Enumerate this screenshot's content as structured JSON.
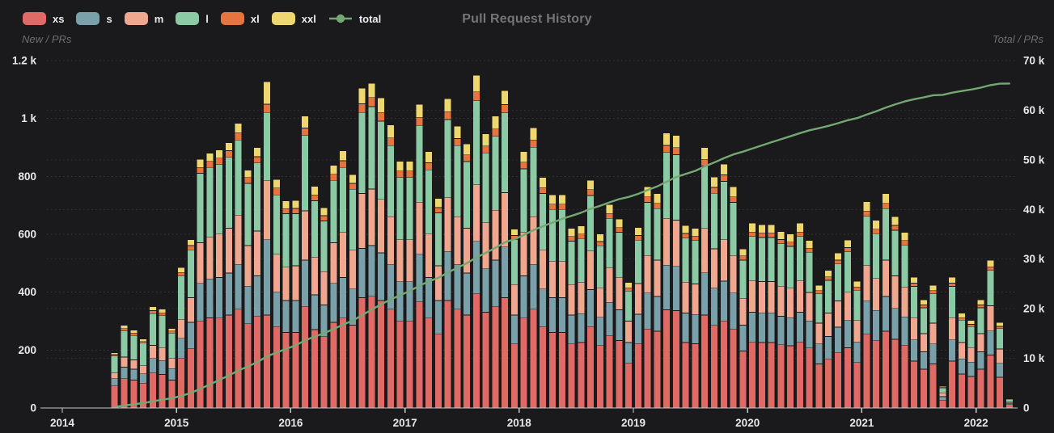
{
  "header": {
    "title": "Pull Request History"
  },
  "legend": [
    {
      "label": "xs",
      "color": "#df6a66",
      "type": "box"
    },
    {
      "label": "s",
      "color": "#7aa1a9",
      "type": "box"
    },
    {
      "label": "m",
      "color": "#f0a78f",
      "type": "box"
    },
    {
      "label": "l",
      "color": "#8cc9a5",
      "type": "box"
    },
    {
      "label": "xl",
      "color": "#e5743e",
      "type": "box"
    },
    {
      "label": "xxl",
      "color": "#eed76f",
      "type": "box"
    },
    {
      "label": "total",
      "color": "#73a873",
      "type": "line"
    }
  ],
  "axes": {
    "left": {
      "label": "New / PRs",
      "ticks": [
        "0",
        "200",
        "400",
        "600",
        "800",
        "1 k",
        "1.2 k"
      ],
      "tick_values": [
        0,
        200,
        400,
        600,
        800,
        1000,
        1200
      ],
      "max": 1200
    },
    "right": {
      "label": "Total / PRs",
      "ticks": [
        "0",
        "10 k",
        "20 k",
        "30 k",
        "40 k",
        "50 k",
        "60 k",
        "70 k"
      ],
      "tick_values": [
        0,
        10000,
        20000,
        30000,
        40000,
        50000,
        60000,
        70000
      ],
      "max": 70000
    },
    "x": {
      "ticks": [
        "2014",
        "2015",
        "2016",
        "2017",
        "2018",
        "2019",
        "2020",
        "2021",
        "2022"
      ]
    }
  },
  "chart_data": {
    "type": "bar",
    "stacked": true,
    "title": "Pull Request History",
    "grid": "dashed",
    "legend_position": "top-left",
    "left_axis_range": [
      0,
      1200
    ],
    "right_axis_range": [
      0,
      70000
    ],
    "categories": [
      "2014-06",
      "2014-07",
      "2014-08",
      "2014-09",
      "2014-10",
      "2014-11",
      "2014-12",
      "2015-01",
      "2015-02",
      "2015-03",
      "2015-04",
      "2015-05",
      "2015-06",
      "2015-07",
      "2015-08",
      "2015-09",
      "2015-10",
      "2015-11",
      "2015-12",
      "2016-01",
      "2016-02",
      "2016-03",
      "2016-04",
      "2016-05",
      "2016-06",
      "2016-07",
      "2016-08",
      "2016-09",
      "2016-10",
      "2016-11",
      "2016-12",
      "2017-01",
      "2017-02",
      "2017-03",
      "2017-04",
      "2017-05",
      "2017-06",
      "2017-07",
      "2017-08",
      "2017-09",
      "2017-10",
      "2017-11",
      "2017-12",
      "2018-01",
      "2018-02",
      "2018-03",
      "2018-04",
      "2018-05",
      "2018-06",
      "2018-07",
      "2018-08",
      "2018-09",
      "2018-10",
      "2018-11",
      "2018-12",
      "2019-01",
      "2019-02",
      "2019-03",
      "2019-04",
      "2019-05",
      "2019-06",
      "2019-07",
      "2019-08",
      "2019-09",
      "2019-10",
      "2019-11",
      "2019-12",
      "2020-01",
      "2020-02",
      "2020-03",
      "2020-04",
      "2020-05",
      "2020-06",
      "2020-07",
      "2020-08",
      "2020-09",
      "2020-10",
      "2020-11",
      "2020-12",
      "2021-01",
      "2021-02",
      "2021-03",
      "2021-04",
      "2021-05",
      "2021-06",
      "2021-07",
      "2021-08",
      "2021-09",
      "2021-10",
      "2021-11",
      "2021-12",
      "2022-01",
      "2022-02",
      "2022-03",
      "2022-04"
    ],
    "series": [
      {
        "name": "xs",
        "color": "#df6a66",
        "values": [
          75,
          100,
          95,
          85,
          120,
          115,
          95,
          170,
          205,
          300,
          310,
          310,
          320,
          340,
          290,
          315,
          320,
          280,
          260,
          260,
          350,
          270,
          245,
          295,
          310,
          285,
          380,
          385,
          370,
          340,
          300,
          300,
          365,
          310,
          255,
          370,
          340,
          320,
          395,
          330,
          350,
          380,
          220,
          310,
          340,
          280,
          260,
          260,
          220,
          225,
          280,
          215,
          250,
          232,
          155,
          222,
          272,
          264,
          338,
          335,
          225,
          221,
          320,
          284,
          300,
          272,
          196,
          227,
          225,
          225,
          217,
          214,
          227,
          206,
          151,
          169,
          191,
          207,
          156,
          254,
          231,
          264,
          236,
          216,
          161,
          133,
          151,
          26,
          161,
          116,
          108,
          133,
          182,
          105,
          11
        ]
      },
      {
        "name": "s",
        "color": "#7aa1a9",
        "values": [
          25,
          40,
          38,
          32,
          50,
          48,
          40,
          70,
          90,
          130,
          135,
          140,
          145,
          155,
          130,
          140,
          260,
          120,
          110,
          110,
          160,
          120,
          110,
          135,
          140,
          125,
          170,
          175,
          165,
          155,
          135,
          135,
          165,
          140,
          115,
          170,
          155,
          145,
          180,
          150,
          160,
          175,
          100,
          145,
          155,
          130,
          120,
          120,
          100,
          100,
          128,
          97,
          114,
          106,
          70,
          101,
          124,
          120,
          154,
          153,
          102,
          101,
          146,
          129,
          137,
          124,
          89,
          103,
          103,
          103,
          99,
          97,
          103,
          94,
          69,
          77,
          87,
          94,
          71,
          116,
          105,
          120,
          107,
          98,
          73,
          60,
          69,
          12,
          73,
          53,
          49,
          60,
          83,
          48,
          5
        ]
      },
      {
        "name": "m",
        "color": "#f0a78f",
        "values": [
          20,
          35,
          32,
          28,
          45,
          45,
          35,
          65,
          85,
          140,
          145,
          150,
          155,
          170,
          140,
          155,
          205,
          130,
          115,
          120,
          170,
          130,
          115,
          140,
          155,
          135,
          190,
          195,
          185,
          165,
          145,
          145,
          180,
          150,
          120,
          185,
          165,
          155,
          195,
          160,
          172,
          188,
          105,
          150,
          165,
          135,
          125,
          125,
          105,
          107,
          133,
          102,
          120,
          111,
          74,
          106,
          130,
          126,
          162,
          160,
          107,
          105,
          153,
          136,
          143,
          130,
          93,
          108,
          108,
          108,
          104,
          102,
          108,
          98,
          72,
          81,
          91,
          98,
          74,
          121,
          110,
          126,
          112,
          103,
          77,
          63,
          72,
          13,
          77,
          56,
          51,
          63,
          87,
          50,
          5
        ]
      },
      {
        "name": "l",
        "color": "#8cc9a5",
        "values": [
          58,
          90,
          85,
          78,
          110,
          110,
          88,
          150,
          165,
          240,
          240,
          240,
          245,
          260,
          215,
          235,
          235,
          205,
          185,
          180,
          260,
          195,
          175,
          215,
          225,
          210,
          280,
          285,
          270,
          245,
          215,
          215,
          265,
          222,
          183,
          270,
          245,
          230,
          290,
          240,
          255,
          275,
          155,
          220,
          240,
          195,
          180,
          180,
          150,
          152,
          192,
          145,
          170,
          157,
          104,
          150,
          183,
          178,
          228,
          226,
          152,
          150,
          216,
          192,
          202,
          183,
          132,
          153,
          152,
          152,
          146,
          144,
          153,
          139,
          101,
          113,
          128,
          139,
          105,
          170,
          155,
          178,
          158,
          145,
          108,
          89,
          101,
          18,
          108,
          78,
          72,
          89,
          122,
          70,
          7
        ]
      },
      {
        "name": "xl",
        "color": "#e5743e",
        "values": [
          5,
          8,
          8,
          6,
          10,
          10,
          7,
          12,
          15,
          20,
          21,
          22,
          23,
          25,
          20,
          22,
          28,
          24,
          18,
          18,
          26,
          20,
          18,
          21,
          23,
          20,
          30,
          31,
          30,
          27,
          22,
          22,
          28,
          24,
          18,
          28,
          25,
          23,
          31,
          24,
          26,
          29,
          15,
          23,
          25,
          20,
          18,
          18,
          16,
          16,
          20,
          15,
          17,
          16,
          11,
          16,
          19,
          18,
          24,
          24,
          16,
          16,
          23,
          20,
          22,
          19,
          14,
          16,
          16,
          16,
          15,
          15,
          16,
          14,
          11,
          12,
          13,
          15,
          11,
          18,
          16,
          18,
          17,
          15,
          11,
          10,
          11,
          2,
          11,
          8,
          8,
          10,
          13,
          8,
          1
        ]
      },
      {
        "name": "xxl",
        "color": "#eed76f",
        "values": [
          7,
          12,
          10,
          8,
          14,
          13,
          9,
          17,
          20,
          28,
          28,
          28,
          28,
          33,
          26,
          31,
          78,
          30,
          26,
          28,
          41,
          30,
          28,
          31,
          35,
          30,
          54,
          50,
          50,
          45,
          34,
          34,
          45,
          38,
          32,
          44,
          42,
          38,
          58,
          42,
          44,
          48,
          22,
          36,
          42,
          35,
          32,
          32,
          28,
          28,
          33,
          26,
          31,
          29,
          19,
          28,
          35,
          34,
          43,
          42,
          28,
          27,
          40,
          36,
          38,
          35,
          25,
          30,
          28,
          28,
          28,
          28,
          30,
          26,
          19,
          22,
          25,
          26,
          20,
          33,
          30,
          34,
          30,
          29,
          21,
          17,
          19,
          3,
          21,
          15,
          14,
          17,
          22,
          14,
          1
        ]
      }
    ],
    "line_series": {
      "name": "total",
      "color": "#73a873",
      "axis": "right",
      "derivation": "cumulative sum of monthly stacked totals",
      "end_value_approx": 65400
    }
  },
  "colors": {
    "background": "#1a1a1c",
    "grid": "#3b3b3e",
    "axis_line": "#c9c9c9",
    "tick_text": "#e8e8e8",
    "dim_text": "#6d6d6d",
    "title_text": "#757575"
  }
}
